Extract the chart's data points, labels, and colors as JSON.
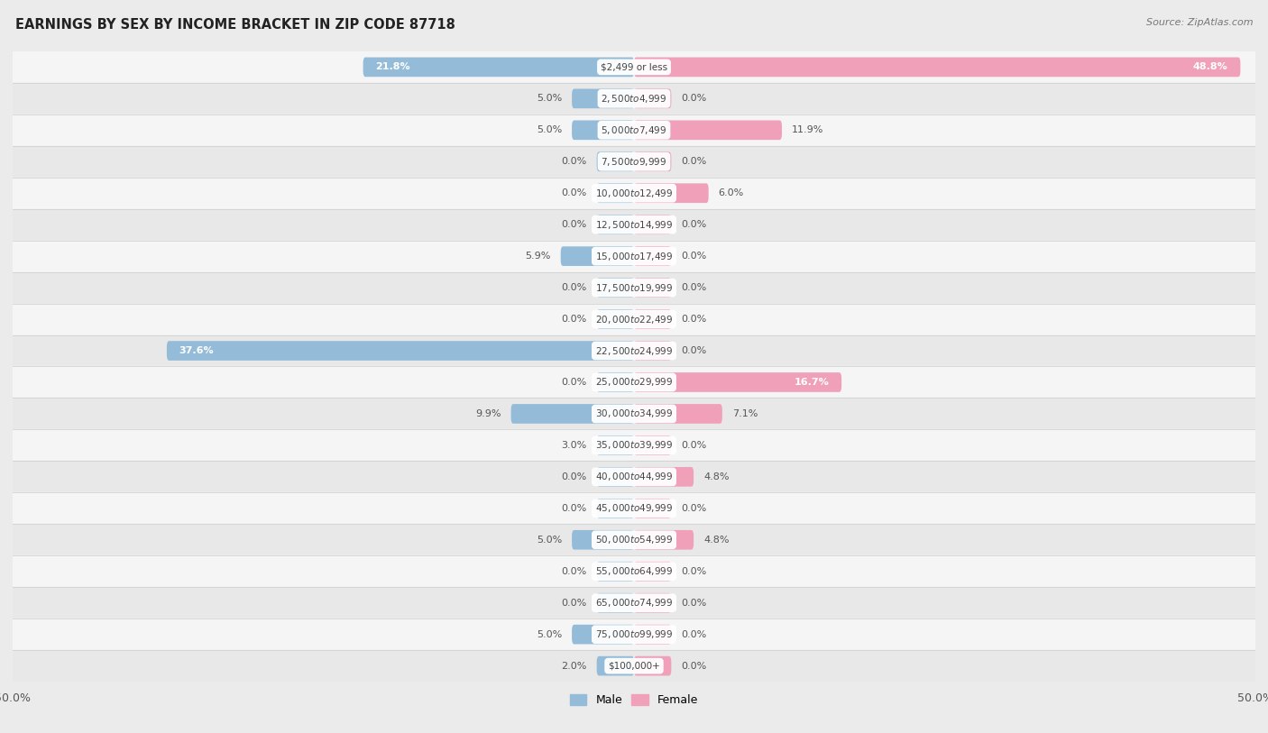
{
  "title": "EARNINGS BY SEX BY INCOME BRACKET IN ZIP CODE 87718",
  "source": "Source: ZipAtlas.com",
  "categories": [
    "$2,499 or less",
    "$2,500 to $4,999",
    "$5,000 to $7,499",
    "$7,500 to $9,999",
    "$10,000 to $12,499",
    "$12,500 to $14,999",
    "$15,000 to $17,499",
    "$17,500 to $19,999",
    "$20,000 to $22,499",
    "$22,500 to $24,999",
    "$25,000 to $29,999",
    "$30,000 to $34,999",
    "$35,000 to $39,999",
    "$40,000 to $44,999",
    "$45,000 to $49,999",
    "$50,000 to $54,999",
    "$55,000 to $64,999",
    "$65,000 to $74,999",
    "$75,000 to $99,999",
    "$100,000+"
  ],
  "male_values": [
    21.8,
    5.0,
    5.0,
    0.0,
    0.0,
    0.0,
    5.9,
    0.0,
    0.0,
    37.6,
    0.0,
    9.9,
    3.0,
    0.0,
    0.0,
    5.0,
    0.0,
    0.0,
    5.0,
    2.0
  ],
  "female_values": [
    48.8,
    0.0,
    11.9,
    0.0,
    6.0,
    0.0,
    0.0,
    0.0,
    0.0,
    0.0,
    16.7,
    7.1,
    0.0,
    4.8,
    0.0,
    4.8,
    0.0,
    0.0,
    0.0,
    0.0
  ],
  "male_color": "#94bcd8",
  "female_color": "#f0a0b8",
  "axis_limit": 50.0,
  "min_stub": 3.0,
  "background_color": "#ebebeb",
  "row_white_color": "#f5f5f5",
  "row_grey_color": "#e8e8e8",
  "title_fontsize": 10.5,
  "source_fontsize": 8,
  "tick_fontsize": 9,
  "label_fontsize": 8,
  "category_fontsize": 7.5,
  "legend_fontsize": 9
}
